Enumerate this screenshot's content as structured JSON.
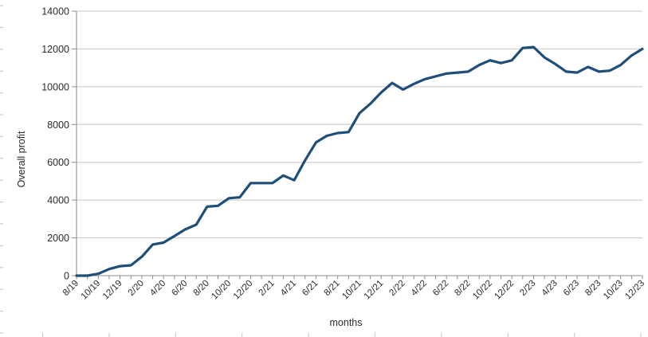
{
  "chart": {
    "y_title": "Overall profit",
    "x_title": "months"
  },
  "chart_data": {
    "type": "line",
    "title": "",
    "xlabel": "months",
    "ylabel": "Overall profit",
    "x": [
      "8/19",
      "9/19",
      "10/19",
      "11/19",
      "12/19",
      "1/20",
      "2/20",
      "3/20",
      "4/20",
      "5/20",
      "6/20",
      "7/20",
      "8/20",
      "9/20",
      "10/20",
      "11/20",
      "12/20",
      "1/21",
      "2/21",
      "3/21",
      "4/21",
      "5/21",
      "6/21",
      "7/21",
      "8/21",
      "9/21",
      "10/21",
      "11/21",
      "12/21",
      "1/22",
      "2/22",
      "3/22",
      "4/22",
      "5/22",
      "6/22",
      "7/22",
      "8/22",
      "9/22",
      "10/22",
      "11/22",
      "12/22",
      "1/23",
      "2/23",
      "3/23",
      "4/23",
      "5/23",
      "6/23",
      "7/23",
      "8/23",
      "9/23",
      "10/23",
      "11/23",
      "12/23"
    ],
    "values": [
      0,
      0,
      100,
      350,
      500,
      550,
      1000,
      1650,
      1750,
      2100,
      2450,
      2700,
      3650,
      3700,
      4100,
      4150,
      4900,
      4900,
      4900,
      5300,
      5050,
      6100,
      7050,
      7400,
      7550,
      7600,
      8600,
      9100,
      9700,
      10200,
      9850,
      10150,
      10400,
      10550,
      10700,
      10750,
      10800,
      11150,
      11400,
      11250,
      11400,
      12050,
      12100,
      11550,
      11200,
      10800,
      10750,
      11050,
      10800,
      10850,
      11150,
      11650,
      12000
    ],
    "x_tick_labels_shown": [
      "8/19",
      "10/19",
      "12/19",
      "2/20",
      "4/20",
      "6/20",
      "8/20",
      "10/20",
      "12/20",
      "2/21",
      "4/21",
      "6/21",
      "8/21",
      "10/21",
      "12/21",
      "2/22",
      "4/22",
      "6/22",
      "8/22",
      "10/22",
      "12/22",
      "2/23",
      "4/23",
      "6/23",
      "8/23",
      "10/23",
      "12/23"
    ],
    "x_label_every": 2,
    "x_label_rotation_deg": 45,
    "ylim": [
      0,
      14000
    ],
    "ytick_step": 2000,
    "grid": "horizontal",
    "legend": "none",
    "line_color": "#1f4e79",
    "grid_color": "#c6c6c6",
    "axis_color": "#8c8c8c",
    "text_color": "#2b2b2b"
  }
}
